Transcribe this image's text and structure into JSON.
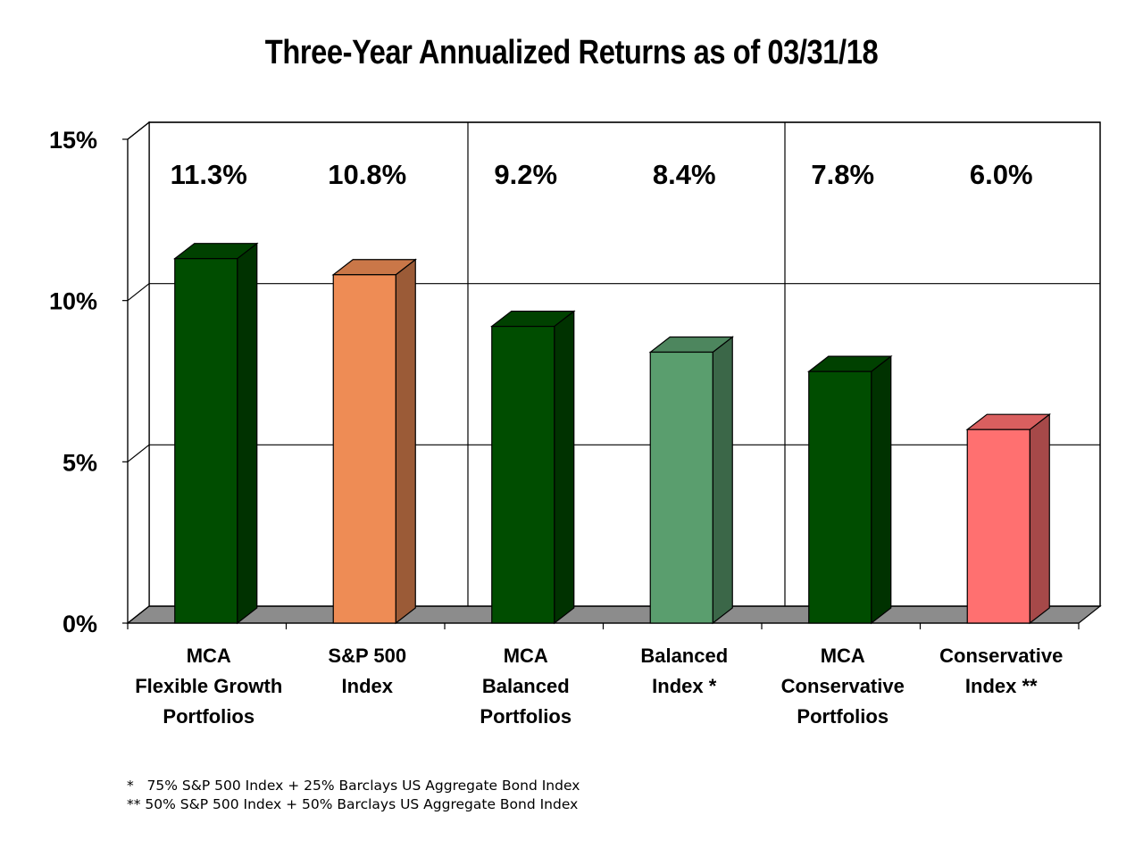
{
  "chart_data": {
    "type": "bar",
    "title": "Three-Year Annualized Returns as of 03/31/18",
    "categories": [
      [
        "MCA",
        "Flexible Growth",
        "Portfolios"
      ],
      [
        "S&P 500",
        "Index"
      ],
      [
        "MCA",
        "Balanced",
        "Portfolios"
      ],
      [
        "Balanced",
        "Index *"
      ],
      [
        "MCA",
        "Conservative",
        "Portfolios"
      ],
      [
        "Conservative",
        "Index **"
      ]
    ],
    "values": [
      11.3,
      10.8,
      9.2,
      8.4,
      7.8,
      6.0
    ],
    "data_labels": [
      "11.3%",
      "10.8%",
      "9.2%",
      "8.4%",
      "7.8%",
      "6.0%"
    ],
    "bar_colors": [
      "#004d00",
      "#ee8c55",
      "#004d00",
      "#5a9e6e",
      "#004d00",
      "#ff7070"
    ],
    "ylim": [
      0,
      15
    ],
    "yticks": [
      0,
      5,
      10,
      15
    ],
    "ytick_labels": [
      "0%",
      "5%",
      "10%",
      "15%"
    ],
    "grid": true,
    "style": "3d"
  },
  "footnotes": [
    "*   75% S&P 500 Index + 25% Barclays US Aggregate Bond Index",
    "** 50% S&P 500 Index + 50% Barclays US Aggregate Bond Index"
  ]
}
